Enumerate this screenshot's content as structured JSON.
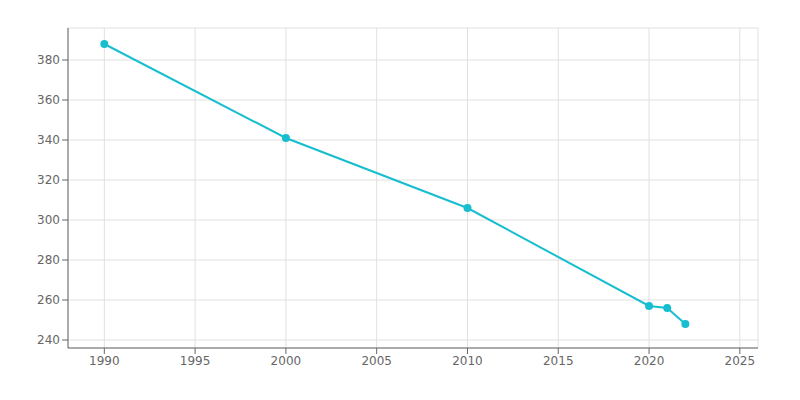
{
  "chart_data": {
    "type": "line",
    "x": [
      1990,
      2000,
      2010,
      2020,
      2021,
      2022
    ],
    "values": [
      388,
      341,
      306,
      257,
      256,
      248
    ],
    "color": "#17becf",
    "marker": "circle",
    "xlim": [
      1988,
      2026
    ],
    "ylim": [
      236,
      396
    ],
    "xticks": [
      1990,
      1995,
      2000,
      2005,
      2010,
      2015,
      2020,
      2025
    ],
    "yticks": [
      240,
      260,
      280,
      300,
      320,
      340,
      360,
      380
    ],
    "grid": true
  }
}
